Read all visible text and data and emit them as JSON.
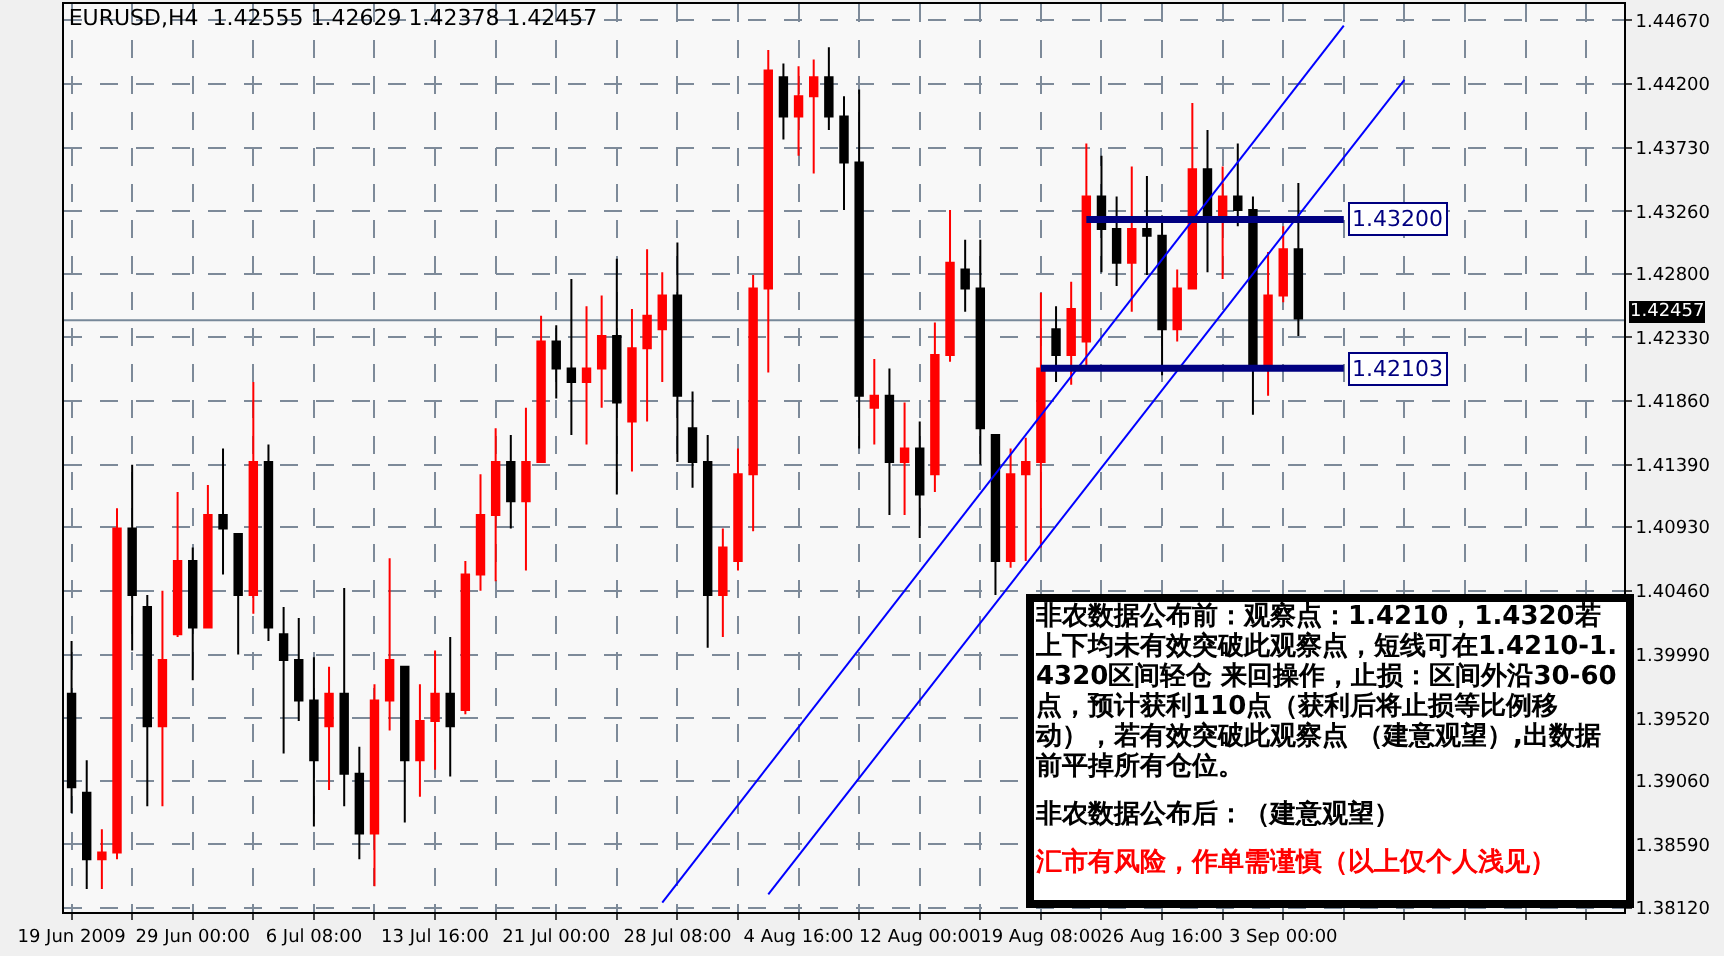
{
  "chart_data": {
    "type": "candlestick",
    "title": "EURUSD,H4  1.42555 1.42629 1.42378 1.42457",
    "categories": [
      "19 Jun 2009",
      null,
      null,
      null,
      null,
      null,
      null,
      null,
      "29 Jun 00:00",
      null,
      null,
      null,
      null,
      null,
      null,
      null,
      "6 Jul 08:00",
      null,
      null,
      null,
      null,
      null,
      null,
      null,
      "13 Jul 16:00",
      null,
      null,
      null,
      null,
      null,
      null,
      null,
      "21 Jul 00:00",
      null,
      null,
      null,
      null,
      null,
      null,
      null,
      "28 Jul 08:00",
      null,
      null,
      null,
      null,
      null,
      null,
      null,
      "4 Aug 16:00",
      null,
      null,
      null,
      null,
      null,
      null,
      null,
      "12 Aug 00:00",
      null,
      null,
      null,
      null,
      null,
      null,
      null,
      "19 Aug 08:00",
      null,
      null,
      null,
      null,
      null,
      null,
      null,
      "26 Aug 16:00",
      null,
      null,
      null,
      null,
      null,
      null,
      null,
      "3 Sep 00:00",
      null,
      null,
      null,
      null,
      null,
      null,
      null,
      null,
      null,
      null,
      null,
      null,
      null,
      null,
      null,
      null,
      null,
      null,
      null,
      null,
      null,
      null
    ],
    "ohlc": [
      [
        1.397,
        1.4009,
        1.3882,
        1.3901
      ],
      [
        1.3897,
        1.3921,
        1.3826,
        1.3848
      ],
      [
        1.3848,
        1.387,
        1.3826,
        1.3853
      ],
      [
        1.3853,
        1.4107,
        1.3848,
        1.4092
      ],
      [
        1.4092,
        1.4139,
        1.4002,
        1.4043
      ],
      [
        1.4034,
        1.4043,
        1.3887,
        1.3946
      ],
      [
        1.3946,
        1.4046,
        1.3887,
        1.3995
      ],
      [
        1.4014,
        1.4119,
        1.4012,
        1.4068
      ],
      [
        1.4068,
        1.4078,
        1.398,
        1.4019
      ],
      [
        1.4019,
        1.4124,
        1.4019,
        1.4102
      ],
      [
        1.4102,
        1.4151,
        1.4058,
        1.4092
      ],
      [
        1.4088,
        1.4088,
        1.3999,
        1.4043
      ],
      [
        1.4043,
        1.42,
        1.4029,
        1.4141
      ],
      [
        1.4141,
        1.4154,
        1.4009,
        1.4019
      ],
      [
        1.4014,
        1.4034,
        1.3926,
        1.3995
      ],
      [
        1.3995,
        1.4026,
        1.395,
        1.3965
      ],
      [
        1.3965,
        1.3997,
        1.3872,
        1.3921
      ],
      [
        1.3946,
        1.399,
        1.3899,
        1.397
      ],
      [
        1.397,
        1.4048,
        1.3887,
        1.3911
      ],
      [
        1.3911,
        1.3931,
        1.3848,
        1.3867
      ],
      [
        1.3867,
        1.3977,
        1.3828,
        1.3965
      ],
      [
        1.3965,
        1.407,
        1.3943,
        1.3995
      ],
      [
        1.399,
        1.399,
        1.3875,
        1.3921
      ],
      [
        1.3921,
        1.3977,
        1.3894,
        1.395
      ],
      [
        1.395,
        1.4002,
        1.3914,
        1.397
      ],
      [
        1.397,
        1.4012,
        1.3909,
        1.3946
      ],
      [
        1.3958,
        1.4068,
        1.3955,
        1.4058
      ],
      [
        1.4058,
        1.4132,
        1.4046,
        1.4102
      ],
      [
        1.4102,
        1.4166,
        1.4053,
        1.4141
      ],
      [
        1.4141,
        1.4161,
        1.4092,
        1.4112
      ],
      [
        1.4112,
        1.4181,
        1.4061,
        1.4141
      ],
      [
        1.4141,
        1.4249,
        1.4141,
        1.423
      ],
      [
        1.423,
        1.4242,
        1.4188,
        1.421
      ],
      [
        1.421,
        1.4276,
        1.4161,
        1.42
      ],
      [
        1.42,
        1.4256,
        1.4154,
        1.421
      ],
      [
        1.421,
        1.4264,
        1.4181,
        1.4234
      ],
      [
        1.4234,
        1.4291,
        1.4117,
        1.4185
      ],
      [
        1.4171,
        1.4254,
        1.4134,
        1.4225
      ],
      [
        1.4225,
        1.4298,
        1.4171,
        1.4249
      ],
      [
        1.4239,
        1.4281,
        1.42,
        1.4264
      ],
      [
        1.4264,
        1.4303,
        1.4141,
        1.419
      ],
      [
        1.4166,
        1.4193,
        1.4122,
        1.4141
      ],
      [
        1.4141,
        1.4161,
        1.4004,
        1.4043
      ],
      [
        1.4043,
        1.4092,
        1.4012,
        1.4078
      ],
      [
        1.4068,
        1.4151,
        1.4061,
        1.4132
      ],
      [
        1.4132,
        1.4279,
        1.409,
        1.4269
      ],
      [
        1.4269,
        1.4445,
        1.4207,
        1.443
      ],
      [
        1.4425,
        1.4435,
        1.4379,
        1.4396
      ],
      [
        1.4396,
        1.4433,
        1.4367,
        1.4411
      ],
      [
        1.4411,
        1.4438,
        1.4354,
        1.4425
      ],
      [
        1.4425,
        1.4447,
        1.4386,
        1.4396
      ],
      [
        1.4396,
        1.4411,
        1.4327,
        1.4362
      ],
      [
        1.4362,
        1.4416,
        1.4151,
        1.419
      ],
      [
        1.4181,
        1.4217,
        1.4154,
        1.419
      ],
      [
        1.419,
        1.421,
        1.4102,
        1.4141
      ],
      [
        1.4141,
        1.4185,
        1.4102,
        1.4151
      ],
      [
        1.4151,
        1.4171,
        1.4085,
        1.4117
      ],
      [
        1.4132,
        1.4244,
        1.4119,
        1.422
      ],
      [
        1.422,
        1.4327,
        1.4215,
        1.4288
      ],
      [
        1.4283,
        1.4305,
        1.4252,
        1.4269
      ],
      [
        1.4269,
        1.4305,
        1.4139,
        1.4166
      ],
      [
        1.4161,
        1.4161,
        1.4043,
        1.4068
      ],
      [
        1.4068,
        1.4151,
        1.4063,
        1.4132
      ],
      [
        1.4132,
        1.4159,
        1.4068,
        1.4141
      ],
      [
        1.4141,
        1.4266,
        1.4078,
        1.421
      ],
      [
        1.4239,
        1.4256,
        1.42,
        1.422
      ],
      [
        1.422,
        1.4274,
        1.4198,
        1.4254
      ],
      [
        1.423,
        1.4376,
        1.421,
        1.4337
      ],
      [
        1.4337,
        1.4367,
        1.4281,
        1.4313
      ],
      [
        1.4313,
        1.4337,
        1.4271,
        1.4288
      ],
      [
        1.4288,
        1.4359,
        1.4252,
        1.4313
      ],
      [
        1.4313,
        1.4352,
        1.4279,
        1.4308
      ],
      [
        1.4308,
        1.4323,
        1.4205,
        1.4239
      ],
      [
        1.4239,
        1.4283,
        1.423,
        1.4269
      ],
      [
        1.4269,
        1.4406,
        1.4269,
        1.4357
      ],
      [
        1.4357,
        1.4386,
        1.4281,
        1.4323
      ],
      [
        1.4323,
        1.4359,
        1.4276,
        1.4337
      ],
      [
        1.4337,
        1.4376,
        1.4315,
        1.4327
      ],
      [
        1.4327,
        1.4337,
        1.4176,
        1.421
      ],
      [
        1.421,
        1.4296,
        1.419,
        1.4264
      ],
      [
        1.4264,
        1.4315,
        1.4259,
        1.4298
      ],
      [
        1.4298,
        1.4347,
        1.4234,
        1.4247
      ],
      null,
      null,
      null,
      null,
      null,
      null,
      null,
      null,
      null,
      null,
      null,
      null,
      null,
      null,
      null,
      null,
      null,
      null,
      null,
      null,
      null
    ],
    "colors": [
      "#000000",
      "#000000",
      "#ff0000",
      "#ff0000",
      "#000000",
      "#000000",
      "#ff0000",
      "#ff0000",
      "#000000",
      "#ff0000",
      "#000000",
      "#000000",
      "#ff0000",
      "#000000",
      "#000000",
      "#000000",
      "#000000",
      "#ff0000",
      "#000000",
      "#000000",
      "#ff0000",
      "#ff0000",
      "#000000",
      "#ff0000",
      "#ff0000",
      "#000000",
      "#ff0000",
      "#ff0000",
      "#ff0000",
      "#000000",
      "#ff0000",
      "#ff0000",
      "#000000",
      "#000000",
      "#ff0000",
      "#ff0000",
      "#000000",
      "#ff0000",
      "#ff0000",
      "#ff0000",
      "#000000",
      "#000000",
      "#000000",
      "#ff0000",
      "#ff0000",
      "#ff0000",
      "#ff0000",
      "#000000",
      "#ff0000",
      "#ff0000",
      "#000000",
      "#000000",
      "#000000",
      "#ff0000",
      "#000000",
      "#ff0000",
      "#000000",
      "#ff0000",
      "#ff0000",
      "#000000",
      "#000000",
      "#000000",
      "#ff0000",
      "#ff0000",
      "#ff0000",
      "#000000",
      "#ff0000",
      "#ff0000",
      "#000000",
      "#000000",
      "#ff0000",
      "#000000",
      "#000000",
      "#ff0000",
      "#ff0000",
      "#000000",
      "#ff0000",
      "#000000",
      "#000000",
      "#ff0000",
      "#ff0000",
      "#000000",
      null,
      null,
      null,
      null,
      null,
      null,
      null,
      null,
      null,
      null,
      null,
      null,
      null,
      null,
      null,
      null,
      null,
      null,
      null,
      null,
      null
    ],
    "series": [
      {
        "type": "line",
        "color": "#0000ff",
        "values": [
          null,
          null,
          null,
          null,
          null,
          null,
          null,
          null,
          null,
          null,
          null,
          null,
          null,
          null,
          null,
          null,
          null,
          null,
          null,
          null,
          null,
          null,
          null,
          null,
          null,
          null,
          null,
          null,
          null,
          null,
          null,
          null,
          null,
          null,
          null,
          null,
          null,
          null,
          null,
          1.3816,
          null,
          null,
          null,
          null,
          null,
          null,
          null,
          null,
          null,
          null,
          null,
          null,
          null,
          null,
          null,
          null,
          null,
          null,
          null,
          null,
          null,
          null,
          null,
          null,
          null,
          null,
          null,
          null,
          null,
          null,
          null,
          null,
          null,
          null,
          null,
          null,
          null,
          null,
          null,
          null,
          null,
          null,
          null,
          null,
          1.4463,
          null,
          null,
          null,
          null,
          null,
          null,
          null,
          null,
          null,
          null,
          null,
          null,
          null,
          null,
          null,
          null,
          null,
          null
        ]
      },
      {
        "type": "line",
        "color": "#0000ff",
        "values": [
          null,
          null,
          null,
          null,
          null,
          null,
          null,
          null,
          null,
          null,
          null,
          null,
          null,
          null,
          null,
          null,
          null,
          null,
          null,
          null,
          null,
          null,
          null,
          null,
          null,
          null,
          null,
          null,
          null,
          null,
          null,
          null,
          null,
          null,
          null,
          null,
          null,
          null,
          null,
          null,
          null,
          null,
          null,
          null,
          null,
          null,
          1.3822,
          null,
          null,
          null,
          null,
          null,
          null,
          null,
          null,
          null,
          null,
          null,
          null,
          null,
          null,
          null,
          null,
          null,
          null,
          null,
          null,
          null,
          null,
          null,
          null,
          null,
          null,
          null,
          null,
          null,
          null,
          null,
          null,
          null,
          null,
          null,
          null,
          null,
          null,
          null,
          null,
          null,
          1.4423,
          null,
          null,
          null,
          null,
          null,
          null,
          null,
          null,
          null,
          null,
          null,
          null,
          null,
          null
        ]
      },
      {
        "type": "line",
        "name": "1.43200",
        "color": "#000080",
        "values": [
          null,
          null,
          null,
          null,
          null,
          null,
          null,
          null,
          null,
          null,
          null,
          null,
          null,
          null,
          null,
          null,
          null,
          null,
          null,
          null,
          null,
          null,
          null,
          null,
          null,
          null,
          null,
          null,
          null,
          null,
          null,
          null,
          null,
          null,
          null,
          null,
          null,
          null,
          null,
          null,
          null,
          null,
          null,
          null,
          null,
          null,
          null,
          null,
          null,
          null,
          null,
          null,
          null,
          null,
          null,
          null,
          null,
          null,
          null,
          null,
          null,
          null,
          null,
          null,
          null,
          null,
          null,
          1.432,
          null,
          null,
          null,
          null,
          null,
          null,
          null,
          null,
          null,
          null,
          null,
          null,
          null,
          null,
          null,
          null,
          1.432,
          null,
          null,
          null,
          null,
          null,
          null,
          null,
          null,
          null,
          null,
          null,
          null,
          null,
          null,
          null,
          null,
          null,
          null
        ]
      },
      {
        "type": "line",
        "name": "1.42103",
        "color": "#000080",
        "values": [
          null,
          null,
          null,
          null,
          null,
          null,
          null,
          null,
          null,
          null,
          null,
          null,
          null,
          null,
          null,
          null,
          null,
          null,
          null,
          null,
          null,
          null,
          null,
          null,
          null,
          null,
          null,
          null,
          null,
          null,
          null,
          null,
          null,
          null,
          null,
          null,
          null,
          null,
          null,
          null,
          null,
          null,
          null,
          null,
          null,
          null,
          null,
          null,
          null,
          null,
          null,
          null,
          null,
          null,
          null,
          null,
          null,
          null,
          null,
          null,
          null,
          null,
          null,
          null,
          1.42103,
          null,
          null,
          null,
          null,
          null,
          null,
          null,
          null,
          null,
          null,
          null,
          null,
          null,
          null,
          null,
          null,
          null,
          null,
          null,
          1.42103,
          null,
          null,
          null,
          null,
          null,
          null,
          null,
          null,
          null,
          null,
          null,
          null,
          null,
          null,
          null,
          null,
          null,
          null
        ]
      }
    ],
    "ref_lines": [
      {
        "axis": "y",
        "value": 1.42457,
        "label": "1.42457",
        "color": "#778899"
      }
    ],
    "annotations": [
      "非农数据公布前：观察点：1.4210，1.4320若上下均未有效突破此观察点，短线可在1.4210-1.4320区间轻仓  来回操作，止损：区间外沿30-60点，预计获利110点（获利后将止损等比例移动），若有效突破此观察点 （建意观望）,出数据前平掉所有仓位。",
      "非农数据公布后：（建意观望）",
      "汇市有风险，作单需谨慎（以上仅个人浅见）"
    ],
    "ylim": [
      1.3809,
      1.4479
    ],
    "yticks": [
      {
        "value": 1.4467,
        "label": "1.44670"
      },
      {
        "value": 1.442,
        "label": "1.44200"
      },
      {
        "value": 1.4373,
        "label": "1.43730"
      },
      {
        "value": 1.4326,
        "label": "1.43260"
      },
      {
        "value": 1.428,
        "label": "1.42800"
      },
      {
        "value": 1.4233,
        "label": "1.42330"
      },
      {
        "value": 1.4186,
        "label": "1.41860"
      },
      {
        "value": 1.4139,
        "label": "1.41390"
      },
      {
        "value": 1.4093,
        "label": "1.40930"
      },
      {
        "value": 1.4046,
        "label": "1.40460"
      },
      {
        "value": 1.3999,
        "label": "1.39990"
      },
      {
        "value": 1.3952,
        "label": "1.39520"
      },
      {
        "value": 1.3906,
        "label": "1.39060"
      },
      {
        "value": 1.3859,
        "label": "1.38590"
      },
      {
        "value": 1.3812,
        "label": "1.38120"
      }
    ],
    "grid": true
  }
}
